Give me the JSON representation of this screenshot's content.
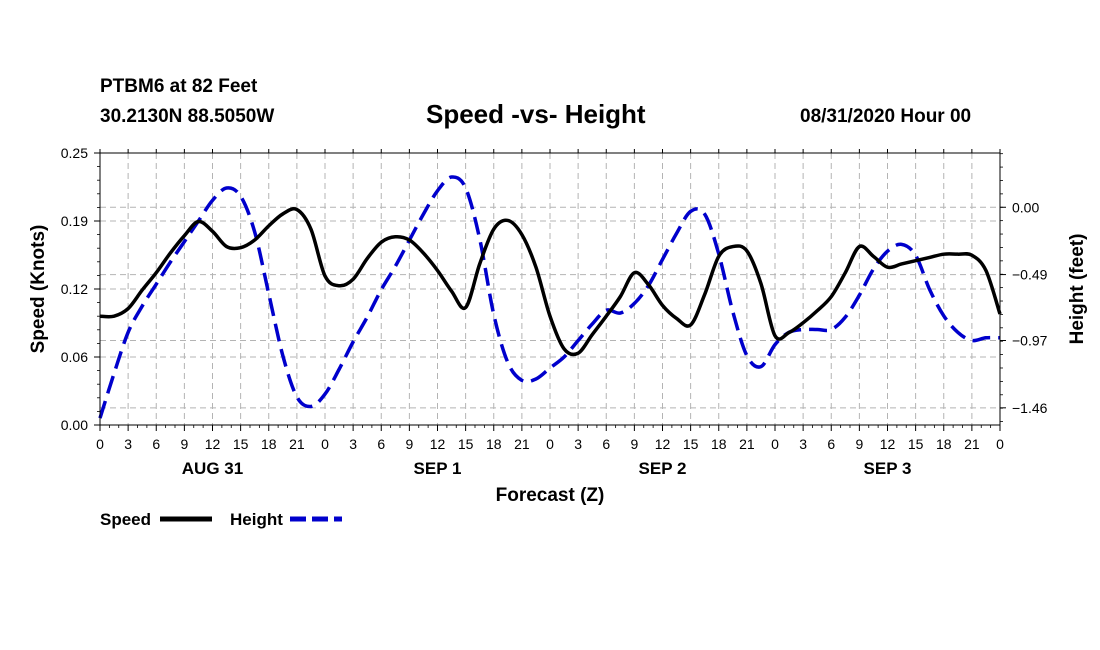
{
  "header": {
    "station": "PTBM6 at 82 Feet",
    "coords": "30.2130N 88.5050W",
    "title": "Speed -vs- Height",
    "date": "08/31/2020 Hour 00"
  },
  "colors": {
    "speed": "#000000",
    "height": "#0000cc",
    "grid": "#b4b4b4"
  },
  "chart_data": {
    "type": "line",
    "title": "Speed -vs- Height",
    "xlabel": "Forecast (Z)",
    "ylabel": "Speed (Knots)",
    "y2label": "Height (feet)",
    "xlim": [
      0,
      96
    ],
    "ylim": [
      0.0,
      0.25
    ],
    "y2lim": [
      -1.585,
      0.395
    ],
    "x_ticks": [
      0,
      3,
      6,
      9,
      12,
      15,
      18,
      21,
      24,
      27,
      30,
      33,
      36,
      39,
      42,
      45,
      48,
      51,
      54,
      57,
      60,
      63,
      66,
      69,
      72,
      75,
      78,
      81,
      84,
      87,
      90,
      93,
      96
    ],
    "x_tick_labels": [
      "0",
      "3",
      "6",
      "9",
      "12",
      "15",
      "18",
      "21",
      "0",
      "3",
      "6",
      "9",
      "12",
      "15",
      "18",
      "21",
      "0",
      "3",
      "6",
      "9",
      "12",
      "15",
      "18",
      "21",
      "0",
      "3",
      "6",
      "9",
      "12",
      "15",
      "18",
      "21",
      "0"
    ],
    "y_ticks": [
      0.0,
      0.0625,
      0.125,
      0.1875,
      0.25
    ],
    "y_tick_labels": [
      "0.00",
      "0.06",
      "0.12",
      "0.19",
      "0.25"
    ],
    "y2_ticks": [
      -1.46,
      -0.97,
      -0.49,
      0.0
    ],
    "y2_tick_labels": [
      "−1.46",
      "−0.97",
      "−0.49",
      "0.00"
    ],
    "date_labels": [
      {
        "x": 12,
        "label": "AUG 31"
      },
      {
        "x": 36,
        "label": "SEP 1"
      },
      {
        "x": 60,
        "label": "SEP 2"
      },
      {
        "x": 84,
        "label": "SEP 3"
      }
    ],
    "grid": true,
    "series": [
      {
        "name": "Speed",
        "axis": "left",
        "style": "solid",
        "x": [
          0,
          1.5,
          3,
          4.5,
          6,
          7.5,
          9,
          10.5,
          12,
          13.5,
          15,
          16.5,
          18,
          19.5,
          21,
          22.5,
          24,
          25.5,
          27,
          28.5,
          30,
          31.5,
          33,
          34.5,
          36,
          37.5,
          39,
          40.5,
          42,
          43.5,
          45,
          46.5,
          48,
          49.5,
          51,
          52.5,
          54,
          55.5,
          57,
          58.5,
          60,
          61.5,
          63,
          64.5,
          66,
          67.5,
          69,
          70.5,
          72,
          73.5,
          75,
          76.5,
          78,
          79.5,
          81,
          82.5,
          84,
          85.5,
          87,
          88.5,
          90,
          91.5,
          93,
          94.5,
          96
        ],
        "values": [
          0.1,
          0.1,
          0.107,
          0.124,
          0.14,
          0.158,
          0.174,
          0.187,
          0.178,
          0.164,
          0.163,
          0.17,
          0.183,
          0.194,
          0.198,
          0.18,
          0.137,
          0.128,
          0.134,
          0.153,
          0.168,
          0.173,
          0.17,
          0.158,
          0.142,
          0.123,
          0.108,
          0.148,
          0.18,
          0.188,
          0.175,
          0.145,
          0.1,
          0.07,
          0.066,
          0.083,
          0.1,
          0.118,
          0.14,
          0.129,
          0.11,
          0.098,
          0.092,
          0.12,
          0.155,
          0.164,
          0.16,
          0.13,
          0.082,
          0.085,
          0.094,
          0.105,
          0.118,
          0.14,
          0.164,
          0.155,
          0.145,
          0.148,
          0.151,
          0.154,
          0.157,
          0.157,
          0.156,
          0.142,
          0.102
        ]
      },
      {
        "name": "Height",
        "axis": "right",
        "style": "dashed",
        "x": [
          0,
          1.5,
          3,
          4.5,
          6,
          7.5,
          9,
          10.5,
          12,
          13.5,
          15,
          16.5,
          18,
          19.5,
          21,
          22.5,
          24,
          25.5,
          27,
          28.5,
          30,
          31.5,
          33,
          34.5,
          36,
          37.5,
          39,
          40.5,
          42,
          43.5,
          45,
          46.5,
          48,
          49.5,
          51,
          52.5,
          54,
          55.5,
          57,
          58.5,
          60,
          61.5,
          63,
          64.5,
          66,
          67.5,
          69,
          70.5,
          72,
          73.5,
          75,
          76.5,
          78,
          79.5,
          81,
          82.5,
          84,
          85.5,
          87,
          88.5,
          90,
          91.5,
          93,
          94.5,
          96
        ],
        "values": [
          -1.535,
          -1.21,
          -0.91,
          -0.72,
          -0.56,
          -0.4,
          -0.25,
          -0.1,
          0.05,
          0.14,
          0.08,
          -0.18,
          -0.63,
          -1.08,
          -1.38,
          -1.45,
          -1.36,
          -1.18,
          -0.98,
          -0.8,
          -0.6,
          -0.43,
          -0.24,
          -0.05,
          0.12,
          0.22,
          0.14,
          -0.23,
          -0.78,
          -1.13,
          -1.26,
          -1.25,
          -1.17,
          -1.09,
          -0.97,
          -0.85,
          -0.75,
          -0.77,
          -0.7,
          -0.57,
          -0.38,
          -0.19,
          -0.03,
          -0.05,
          -0.34,
          -0.76,
          -1.08,
          -1.16,
          -1.0,
          -0.91,
          -0.89,
          -0.89,
          -0.89,
          -0.8,
          -0.64,
          -0.45,
          -0.32,
          -0.27,
          -0.35,
          -0.6,
          -0.79,
          -0.91,
          -0.97,
          -0.95,
          -0.95
        ]
      }
    ],
    "legend": [
      {
        "label": "Speed",
        "series": 0
      },
      {
        "label": "Height",
        "series": 1
      }
    ],
    "legend_position": "bottom-left"
  }
}
